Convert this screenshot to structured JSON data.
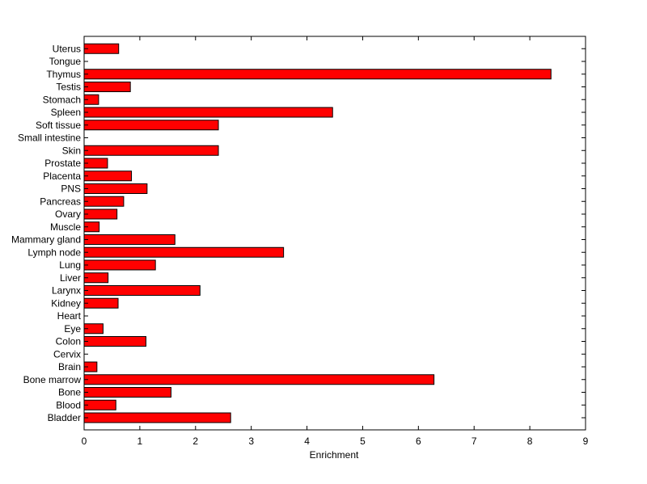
{
  "chart_data": {
    "type": "bar",
    "orientation": "horizontal",
    "title": "",
    "xlabel": "Enrichment",
    "ylabel": "",
    "xlim": [
      0,
      9
    ],
    "xticks": [
      0,
      1,
      2,
      3,
      4,
      5,
      6,
      7,
      8,
      9
    ],
    "grid": false,
    "bar_color": "#ff0000",
    "bar_edge_color": "#000000",
    "categories": [
      "Bladder",
      "Blood",
      "Bone",
      "Bone marrow",
      "Brain",
      "Cervix",
      "Colon",
      "Eye",
      "Heart",
      "Kidney",
      "Larynx",
      "Liver",
      "Lung",
      "Lymph node",
      "Mammary gland",
      "Muscle",
      "Ovary",
      "Pancreas",
      "PNS",
      "Placenta",
      "Prostate",
      "Skin",
      "Small intestine",
      "Soft tissue",
      "Spleen",
      "Stomach",
      "Testis",
      "Thymus",
      "Tongue",
      "Uterus"
    ],
    "values": [
      2.63,
      0.57,
      1.56,
      6.28,
      0.23,
      0,
      1.11,
      0.34,
      0,
      0.61,
      2.08,
      0.43,
      1.28,
      3.58,
      1.63,
      0.27,
      0.59,
      0.71,
      1.13,
      0.85,
      0.42,
      2.41,
      0,
      2.41,
      4.46,
      0.26,
      0.83,
      8.38,
      0,
      0.62
    ]
  }
}
